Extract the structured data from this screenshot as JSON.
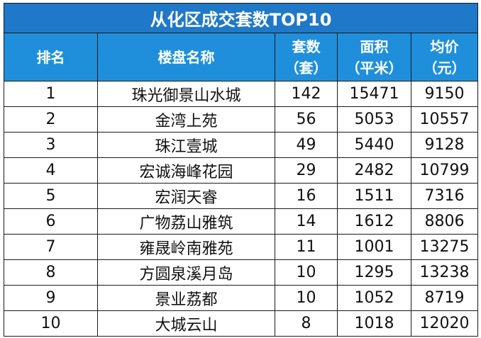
{
  "title": "从化区成交套数TOP10",
  "headers": [
    {
      "line1": "排名",
      "line2": ""
    },
    {
      "line1": "楼盘名称",
      "line2": ""
    },
    {
      "line1": "套数",
      "line2": "（套）"
    },
    {
      "line1": "面积",
      "line2": "（平米）"
    },
    {
      "line1": "均价",
      "line2": "（元）"
    }
  ],
  "rows": [
    [
      "1",
      "珠光御景山水城",
      "142",
      "15471",
      "9150"
    ],
    [
      "2",
      "金湾上苑",
      "56",
      "5053",
      "10557"
    ],
    [
      "3",
      "珠江壹城",
      "49",
      "5440",
      "9128"
    ],
    [
      "4",
      "宏诚海峰花园",
      "29",
      "2482",
      "10799"
    ],
    [
      "5",
      "宏润天睿",
      "16",
      "1511",
      "7316"
    ],
    [
      "6",
      "广物荔山雅筑",
      "14",
      "1612",
      "8806"
    ],
    [
      "7",
      "雍晟岭南雅苑",
      "11",
      "1001",
      "13275"
    ],
    [
      "8",
      "方圆泉溪月岛",
      "10",
      "1295",
      "13238"
    ],
    [
      "9",
      "景业荔都",
      "10",
      "1052",
      "8719"
    ],
    [
      "10",
      "大城云山",
      "8",
      "1018",
      "12020"
    ]
  ],
  "colors": {
    "title_bg": "#1f78c8",
    "header_bg": "#1f8fdc",
    "header_text": "#ffffff",
    "grid": "#1a1a1a"
  }
}
